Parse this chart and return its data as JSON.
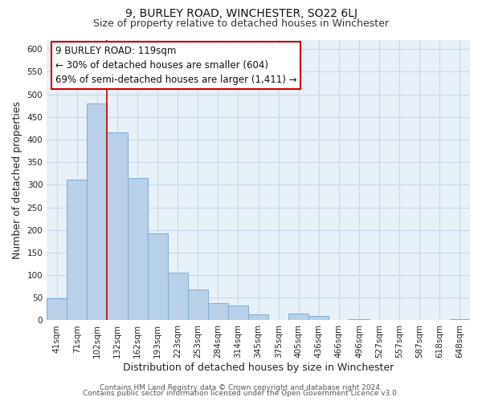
{
  "title": "9, BURLEY ROAD, WINCHESTER, SO22 6LJ",
  "subtitle": "Size of property relative to detached houses in Winchester",
  "xlabel": "Distribution of detached houses by size in Winchester",
  "ylabel": "Number of detached properties",
  "bar_color": "#b8d0e8",
  "bar_edge_color": "#7aaed6",
  "categories": [
    "41sqm",
    "71sqm",
    "102sqm",
    "132sqm",
    "162sqm",
    "193sqm",
    "223sqm",
    "253sqm",
    "284sqm",
    "314sqm",
    "345sqm",
    "375sqm",
    "405sqm",
    "436sqm",
    "466sqm",
    "496sqm",
    "527sqm",
    "557sqm",
    "587sqm",
    "618sqm",
    "648sqm"
  ],
  "values": [
    48,
    311,
    479,
    416,
    314,
    192,
    105,
    68,
    38,
    32,
    14,
    0,
    15,
    10,
    0,
    3,
    0,
    0,
    0,
    0,
    2
  ],
  "ylim": [
    0,
    620
  ],
  "yticks": [
    0,
    50,
    100,
    150,
    200,
    250,
    300,
    350,
    400,
    450,
    500,
    550,
    600
  ],
  "vline_bin_index": 2,
  "vline_color": "#cc0000",
  "annotation_line1": "9 BURLEY ROAD: 119sqm",
  "annotation_line2": "← 30% of detached houses are smaller (604)",
  "annotation_line3": "69% of semi-detached houses are larger (1,411) →",
  "footer_line1": "Contains HM Land Registry data © Crown copyright and database right 2024.",
  "footer_line2": "Contains public sector information licensed under the Open Government Licence v3.0.",
  "background_color": "#ffffff",
  "plot_bg_color": "#e8f0f8",
  "grid_color": "#c8d8e8",
  "title_fontsize": 10,
  "subtitle_fontsize": 9,
  "axis_label_fontsize": 9,
  "tick_fontsize": 7.5,
  "annotation_fontsize": 8.5,
  "footer_fontsize": 6.5
}
